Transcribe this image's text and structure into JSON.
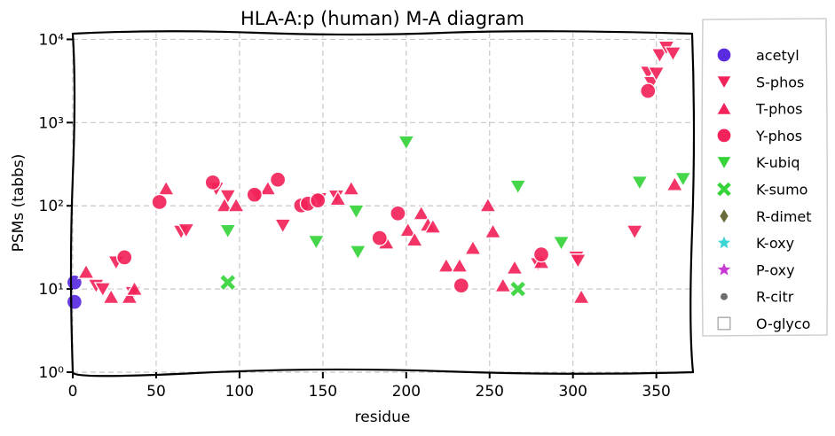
{
  "chart_data": {
    "type": "scatter",
    "title": "HLA-A:p (human) M-A diagram",
    "xlabel": "residue",
    "ylabel": "PSMs (tabbs)",
    "xlim": [
      0,
      372
    ],
    "ylim": [
      1,
      12000
    ],
    "yscale": "log",
    "xticks": [
      0,
      50,
      100,
      150,
      200,
      250,
      300,
      350
    ],
    "yticks": [
      {
        "value": 1,
        "label": "10⁰"
      },
      {
        "value": 10,
        "label": "10¹"
      },
      {
        "value": 100,
        "label": "10²"
      },
      {
        "value": 1000,
        "label": "10³"
      },
      {
        "value": 10000,
        "label": "10⁴"
      }
    ],
    "grid": true,
    "legend_position": "outside-right",
    "series": [
      {
        "name": "acetyl",
        "marker": "circle",
        "color": "#5b2be0",
        "points": [
          [
            1,
            12
          ],
          [
            1,
            7
          ]
        ]
      },
      {
        "name": "S-phos",
        "marker": "triangle-down",
        "color": "#f2235a",
        "points": [
          [
            14,
            11
          ],
          [
            18,
            10
          ],
          [
            26,
            21
          ],
          [
            36,
            9
          ],
          [
            65,
            49
          ],
          [
            68,
            51
          ],
          [
            86,
            161
          ],
          [
            93,
            131
          ],
          [
            111,
            131
          ],
          [
            126,
            58
          ],
          [
            148,
            121
          ],
          [
            158,
            130
          ],
          [
            279,
            20
          ],
          [
            302,
            24
          ],
          [
            303,
            22
          ],
          [
            337,
            49
          ],
          [
            345,
            4000
          ],
          [
            347,
            3000
          ],
          [
            350,
            3900
          ],
          [
            352,
            6500
          ],
          [
            356,
            8000
          ],
          [
            360,
            6800
          ]
        ]
      },
      {
        "name": "T-phos",
        "marker": "triangle-up",
        "color": "#f2235a",
        "points": [
          [
            8,
            16
          ],
          [
            23,
            8
          ],
          [
            34,
            8
          ],
          [
            37,
            10
          ],
          [
            56,
            161
          ],
          [
            91,
            101
          ],
          [
            98,
            101
          ],
          [
            117,
            161
          ],
          [
            159,
            121
          ],
          [
            167,
            161
          ],
          [
            188,
            36
          ],
          [
            201,
            51
          ],
          [
            205,
            39
          ],
          [
            209,
            81
          ],
          [
            213,
            59
          ],
          [
            216,
            56
          ],
          [
            224,
            19
          ],
          [
            232,
            19
          ],
          [
            240,
            31
          ],
          [
            249,
            101
          ],
          [
            252,
            49
          ],
          [
            258,
            11
          ],
          [
            265,
            18
          ],
          [
            281,
            21
          ],
          [
            305,
            8
          ],
          [
            361,
            181
          ]
        ]
      },
      {
        "name": "Y-phos",
        "marker": "circle",
        "color": "#f2235a",
        "points": [
          [
            31,
            24
          ],
          [
            52,
            111
          ],
          [
            84,
            191
          ],
          [
            109,
            136
          ],
          [
            123,
            206
          ],
          [
            137,
            101
          ],
          [
            141,
            106
          ],
          [
            147,
            116
          ],
          [
            184,
            41
          ],
          [
            195,
            81
          ],
          [
            233,
            11
          ],
          [
            281,
            26
          ],
          [
            345,
            2400
          ]
        ]
      },
      {
        "name": "K-ubiq",
        "marker": "triangle-down",
        "color": "#36d43a",
        "points": [
          [
            93,
            50
          ],
          [
            146,
            37
          ],
          [
            170,
            86
          ],
          [
            171,
            28
          ],
          [
            200,
            580
          ],
          [
            267,
            171
          ],
          [
            293,
            36
          ],
          [
            340,
            191
          ],
          [
            366,
            211
          ]
        ]
      },
      {
        "name": "K-sumo",
        "marker": "x",
        "color": "#36d43a",
        "points": [
          [
            93,
            12
          ],
          [
            267,
            10
          ]
        ]
      },
      {
        "name": "R-dimet",
        "marker": "diamond",
        "color": "#6b6a3a",
        "points": []
      },
      {
        "name": "K-oxy",
        "marker": "star",
        "color": "#3ad6d6",
        "points": []
      },
      {
        "name": "P-oxy",
        "marker": "star",
        "color": "#c83ad6",
        "points": []
      },
      {
        "name": "R-citr",
        "marker": "dot",
        "color": "#6e6e6e",
        "points": []
      },
      {
        "name": "O-glyco",
        "marker": "square-open",
        "color": "#aaaaaa",
        "points": []
      }
    ]
  }
}
